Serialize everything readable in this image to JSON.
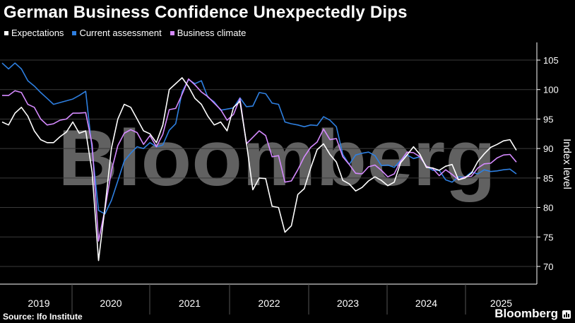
{
  "title": "German Business Confidence Unexpectedly Dips",
  "source": "Source: Ifo Institute",
  "brand": "Bloomberg",
  "watermark": "Bloomberg",
  "colors": {
    "expectations": "#ffffff",
    "current": "#2e7fe0",
    "climate": "#d58aff",
    "grid": "#3a3a3a",
    "axis": "#ffffff",
    "background": "#000000"
  },
  "chart_data": {
    "type": "line",
    "xlabel": "",
    "ylabel": "Index level",
    "ylim": [
      67,
      108
    ],
    "y_ticks": [
      70,
      75,
      80,
      85,
      90,
      95,
      100,
      105
    ],
    "x_range": [
      "2019-01",
      "2025-09"
    ],
    "year_labels": [
      "2019",
      "2020",
      "2021",
      "2022",
      "2023",
      "2024",
      "2025"
    ],
    "grid": "horizontal",
    "legend_position": "top-left",
    "series": [
      {
        "name": "Expectations",
        "values": [
          94.5,
          94.0,
          96.0,
          97.0,
          95.5,
          93.0,
          91.5,
          91.0,
          91.0,
          92.0,
          92.8,
          94.5,
          92.6,
          93.0,
          86.0,
          71.0,
          80.0,
          90.0,
          95.0,
          97.5,
          97.0,
          95.0,
          93.0,
          92.5,
          91.0,
          94.0,
          100.0,
          101.0,
          102.0,
          100.5,
          98.5,
          97.5,
          95.5,
          94.0,
          94.5,
          93.0,
          97.0,
          98.0,
          91.0,
          83.0,
          85.0,
          84.9,
          80.2,
          80.0,
          75.8,
          76.9,
          82.2,
          83.2,
          86.7,
          89.8,
          90.8,
          89.0,
          87.7,
          84.6,
          84.0,
          82.8,
          83.4,
          84.5,
          85.2,
          84.6,
          83.7,
          84.3,
          87.6,
          88.9,
          90.3,
          89.0,
          86.8,
          86.7,
          86.3,
          87.0,
          87.3,
          84.7,
          85.0,
          85.8,
          87.8,
          89.1,
          90.2,
          90.7,
          91.3,
          91.5,
          89.7
        ]
      },
      {
        "name": "Current assessment",
        "values": [
          104.5,
          103.5,
          104.5,
          103.5,
          101.5,
          100.6,
          99.5,
          98.5,
          97.5,
          97.8,
          98.1,
          98.4,
          99.0,
          99.7,
          89.8,
          79.5,
          78.9,
          81.2,
          84.5,
          87.9,
          89.2,
          90.3,
          90.0,
          91.0,
          90.3,
          90.6,
          93.1,
          94.2,
          99.6,
          101.7,
          101.0,
          101.5,
          98.7,
          97.9,
          96.5,
          96.7,
          96.9,
          98.6,
          97.1,
          97.2,
          99.5,
          99.3,
          97.7,
          97.5,
          94.5,
          94.2,
          94.0,
          93.7,
          94.0,
          93.9,
          95.4,
          94.8,
          93.7,
          89.0,
          87.3,
          88.9,
          89.2,
          89.4,
          88.8,
          87.1,
          87.2,
          86.8,
          88.0,
          88.9,
          88.3,
          88.6,
          87.0,
          86.3,
          86.3,
          84.7,
          84.3,
          85.2,
          85.1,
          86.0,
          85.7,
          86.4,
          86.1,
          86.2,
          86.4,
          86.5,
          85.7
        ]
      },
      {
        "name": "Business climate",
        "values": [
          99.0,
          99.0,
          99.8,
          99.5,
          97.5,
          97.0,
          95.0,
          94.0,
          94.2,
          94.8,
          95.0,
          96.0,
          96.0,
          96.1,
          90.7,
          74.3,
          79.7,
          86.2,
          90.5,
          92.6,
          93.2,
          92.7,
          90.7,
          92.2,
          90.3,
          92.4,
          96.6,
          96.8,
          99.2,
          101.8,
          100.8,
          99.6,
          98.8,
          97.7,
          96.6,
          94.8,
          95.8,
          98.5,
          90.8,
          91.9,
          93.0,
          92.2,
          88.6,
          88.8,
          84.3,
          84.5,
          86.4,
          88.6,
          90.2,
          91.1,
          93.3,
          91.5,
          91.7,
          88.6,
          87.3,
          85.8,
          85.7,
          86.9,
          87.2,
          86.3,
          85.2,
          85.7,
          87.9,
          89.4,
          89.3,
          88.6,
          87.0,
          86.6,
          85.4,
          86.4,
          85.6,
          84.7,
          85.2,
          85.3,
          86.7,
          87.4,
          87.5,
          88.4,
          88.9,
          89.0,
          87.7
        ]
      }
    ]
  }
}
